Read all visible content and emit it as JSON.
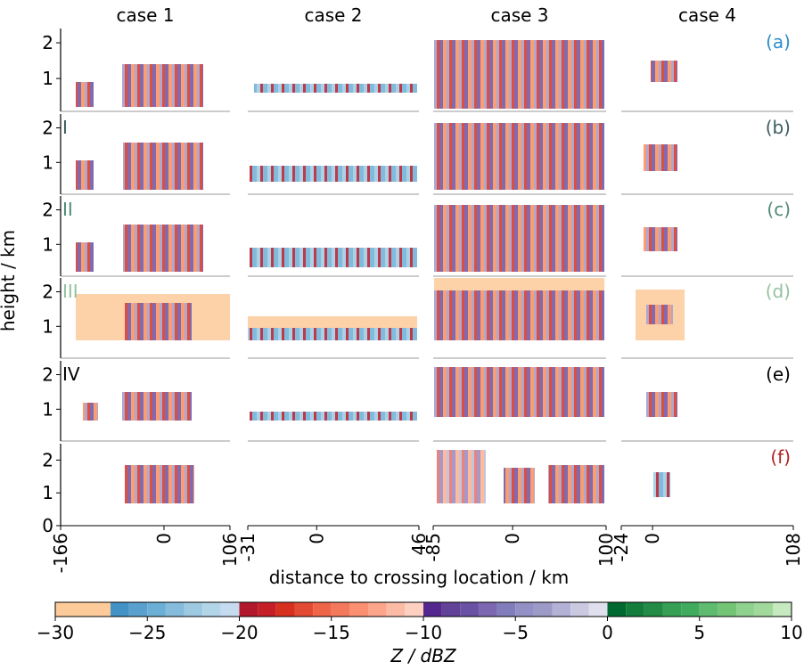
{
  "columns": [
    "case 1",
    "case 2",
    "case 3",
    "case 4"
  ],
  "column_xlim": [
    [
      -166,
      106
    ],
    [
      -31,
      46
    ],
    [
      -85,
      100
    ],
    [
      -24,
      108
    ]
  ],
  "column_xticks": [
    [
      -166,
      0,
      106
    ],
    [
      -31,
      0,
      46
    ],
    [
      -85,
      0,
      100
    ],
    [
      -24,
      0,
      108
    ]
  ],
  "rows": [
    {
      "panel_label": "(a)",
      "color": "#2a8fc9",
      "ylim": [
        0.08,
        2.4
      ],
      "yticks": [
        1,
        2
      ]
    },
    {
      "panel_label": "(b)",
      "row_label": "I",
      "color": "#3d5c5c",
      "ylim": [
        0.08,
        2.4
      ],
      "yticks": [
        1,
        2
      ]
    },
    {
      "panel_label": "(c)",
      "row_label": "II",
      "color": "#4f8a74",
      "ylim": [
        0.08,
        2.4
      ],
      "yticks": [
        1,
        2
      ]
    },
    {
      "panel_label": "(d)",
      "row_label": "III",
      "color": "#93c29e",
      "ylim": [
        0.08,
        2.4
      ],
      "yticks": [
        1,
        2
      ]
    },
    {
      "panel_label": "(e)",
      "row_label": "IV",
      "color": "#000000",
      "ylim": [
        0.08,
        2.4
      ],
      "yticks": [
        1,
        2
      ]
    },
    {
      "panel_label": "(f)",
      "color": "#b22222",
      "ylim": [
        0,
        2.5
      ],
      "yticks": [
        0,
        1,
        2
      ]
    }
  ],
  "y_label": "height / km",
  "x_label": "distance to crossing location / km",
  "colorbar": {
    "label": "Z / dBZ",
    "bounds": [
      -30,
      -27,
      -26,
      -25,
      -24,
      -23,
      -22,
      -21,
      -20,
      -19,
      -18,
      -17,
      -16,
      -15,
      -14,
      -13,
      -12,
      -11,
      -10,
      -9,
      -8,
      -7,
      -6,
      -5,
      -4,
      -3,
      -2,
      -1,
      0,
      1,
      2,
      3,
      4,
      5,
      6,
      7,
      8,
      9,
      10
    ],
    "colors": [
      "#fdcb9a",
      "#4292c6",
      "#5aa0cf",
      "#6baed6",
      "#85bcdc",
      "#9ecae1",
      "#b3d5e8",
      "#c6dbef",
      "#b2182b",
      "#c61e27",
      "#d7301f",
      "#e34a33",
      "#ef6548",
      "#f4795c",
      "#fb8f72",
      "#fca58b",
      "#fcbba5",
      "#fdd0c2",
      "#54278f",
      "#624199",
      "#6a51a3",
      "#7b68b0",
      "#807dba",
      "#9390c5",
      "#9e9ac8",
      "#b4b1d6",
      "#cbc9e2",
      "#e0dfee",
      "#00692f",
      "#137d3c",
      "#238b45",
      "#37a055",
      "#41ab5d",
      "#5fbb6f",
      "#74c476",
      "#8fd18e",
      "#a1d99b",
      "#c7e9c0"
    ],
    "ticks": [
      {
        "value": -30,
        "label": "−30"
      },
      {
        "value": -25,
        "label": "−25"
      },
      {
        "value": -20,
        "label": "−20"
      },
      {
        "value": -15,
        "label": "−15"
      },
      {
        "value": -10,
        "label": "−10"
      },
      {
        "value": -5,
        "label": "−5"
      },
      0,
      5,
      10
    ]
  }
}
